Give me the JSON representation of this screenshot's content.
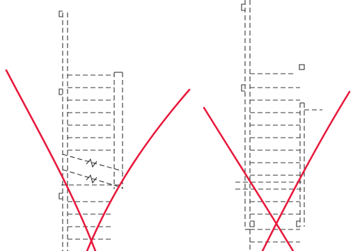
{
  "colors": {
    "background": "#ffffff",
    "linework": "#333333",
    "cross_mark": "#e8193c"
  },
  "drawings": [
    {
      "name": "left-stair-plan",
      "crossed_out": true,
      "break_line_symbols": 2
    },
    {
      "name": "right-stair-plan",
      "crossed_out": true,
      "break_line_symbols": 0
    }
  ]
}
